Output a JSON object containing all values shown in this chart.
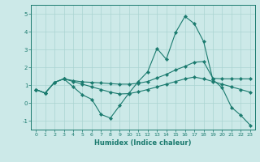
{
  "xlabel": "Humidex (Indice chaleur)",
  "background_color": "#cce9e8",
  "grid_color": "#aad4d2",
  "line_color": "#1a7a6e",
  "xlim": [
    -0.5,
    23.5
  ],
  "ylim": [
    -1.5,
    5.5
  ],
  "xticks": [
    0,
    1,
    2,
    3,
    4,
    5,
    6,
    7,
    8,
    9,
    10,
    11,
    12,
    13,
    14,
    15,
    16,
    17,
    18,
    19,
    20,
    21,
    22,
    23
  ],
  "yticks": [
    -1,
    0,
    1,
    2,
    3,
    4,
    5
  ],
  "line1_x": [
    0,
    1,
    2,
    3,
    4,
    5,
    6,
    7,
    8,
    9,
    10,
    11,
    12,
    13,
    14,
    15,
    16,
    17,
    18,
    19,
    20,
    21,
    22,
    23
  ],
  "line1_y": [
    0.75,
    0.55,
    1.15,
    1.35,
    0.9,
    0.45,
    0.2,
    -0.65,
    -0.85,
    -0.15,
    0.55,
    1.2,
    1.75,
    3.05,
    2.45,
    3.95,
    4.85,
    4.45,
    3.45,
    1.3,
    0.85,
    -0.25,
    -0.7,
    -1.25
  ],
  "line2_x": [
    0,
    1,
    2,
    3,
    4,
    5,
    6,
    7,
    8,
    9,
    10,
    11,
    12,
    13,
    14,
    15,
    16,
    17,
    18,
    19,
    20,
    21,
    22,
    23
  ],
  "line2_y": [
    0.75,
    0.55,
    1.15,
    1.35,
    1.25,
    1.18,
    1.15,
    1.12,
    1.08,
    1.05,
    1.05,
    1.1,
    1.2,
    1.4,
    1.6,
    1.85,
    2.05,
    2.28,
    2.32,
    1.38,
    1.35,
    1.35,
    1.35,
    1.35
  ],
  "line3_x": [
    0,
    1,
    2,
    3,
    4,
    5,
    6,
    7,
    8,
    9,
    10,
    11,
    12,
    13,
    14,
    15,
    16,
    17,
    18,
    19,
    20,
    21,
    22,
    23
  ],
  "line3_y": [
    0.75,
    0.55,
    1.15,
    1.35,
    1.2,
    1.05,
    0.9,
    0.75,
    0.6,
    0.5,
    0.52,
    0.62,
    0.75,
    0.9,
    1.05,
    1.2,
    1.35,
    1.45,
    1.35,
    1.2,
    1.05,
    0.9,
    0.75,
    0.6
  ]
}
